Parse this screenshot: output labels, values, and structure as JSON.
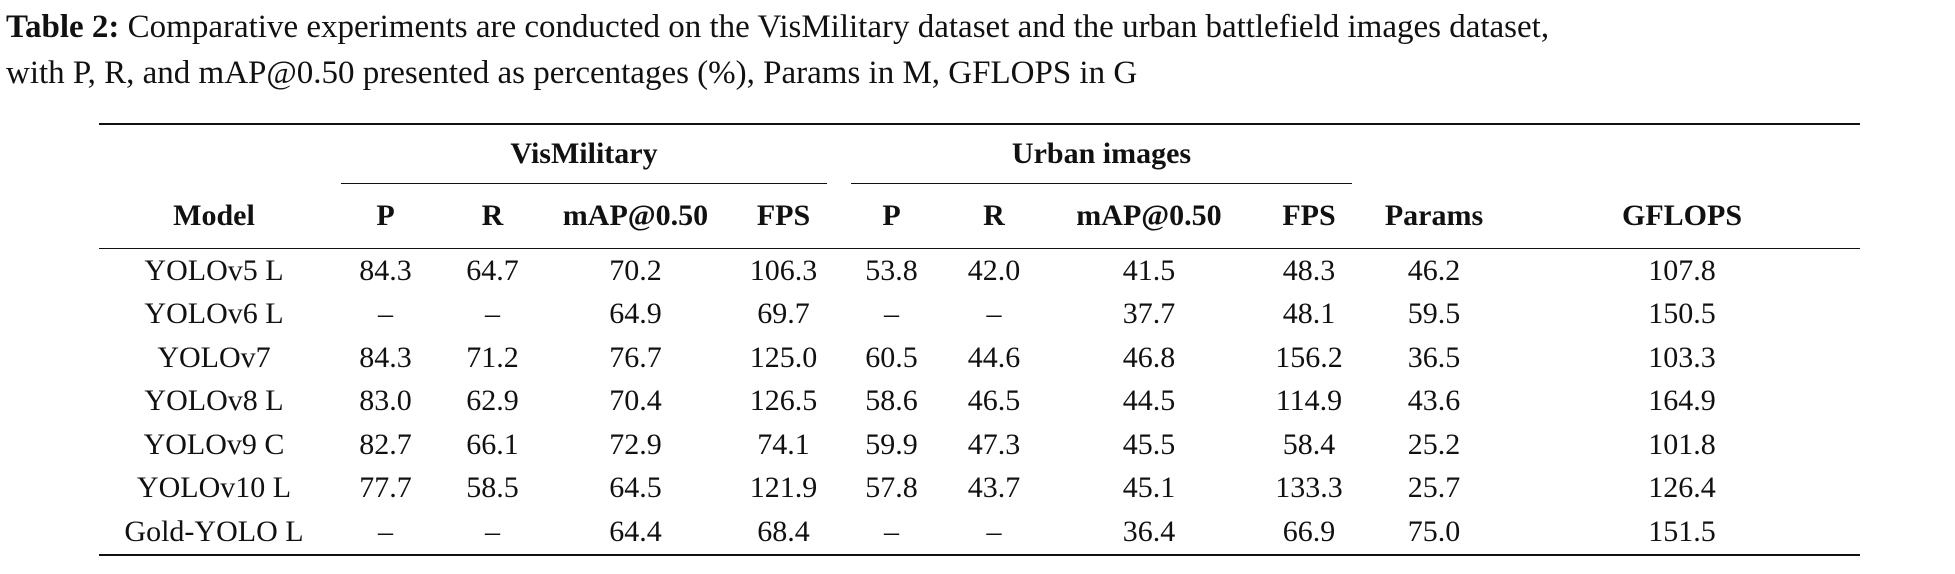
{
  "caption": {
    "label": "Table 2:",
    "line1": " Comparative experiments are conducted on the VisMilitary dataset and the urban battlefield images dataset,",
    "line2": "with P, R, and mAP@0.50 presented as percentages (%), Params in M, GFLOPS in G"
  },
  "table": {
    "groups": {
      "vismilitary": "VisMilitary",
      "urban": "Urban images"
    },
    "headers": [
      "Model",
      "P",
      "R",
      "mAP@0.50",
      "FPS",
      "P",
      "R",
      "mAP@0.50",
      "FPS",
      "Params",
      "GFLOPS"
    ],
    "rows": [
      [
        "YOLOv5 L",
        "84.3",
        "64.7",
        "70.2",
        "106.3",
        "53.8",
        "42.0",
        "41.5",
        "48.3",
        "46.2",
        "107.8"
      ],
      [
        "YOLOv6 L",
        "–",
        "–",
        "64.9",
        "69.7",
        "–",
        "–",
        "37.7",
        "48.1",
        "59.5",
        "150.5"
      ],
      [
        "YOLOv7",
        "84.3",
        "71.2",
        "76.7",
        "125.0",
        "60.5",
        "44.6",
        "46.8",
        "156.2",
        "36.5",
        "103.3"
      ],
      [
        "YOLOv8 L",
        "83.0",
        "62.9",
        "70.4",
        "126.5",
        "58.6",
        "46.5",
        "44.5",
        "114.9",
        "43.6",
        "164.9"
      ],
      [
        "YOLOv9 C",
        "82.7",
        "66.1",
        "72.9",
        "74.1",
        "59.9",
        "47.3",
        "45.5",
        "58.4",
        "25.2",
        "101.8"
      ],
      [
        "YOLOv10 L",
        "77.7",
        "58.5",
        "64.5",
        "121.9",
        "57.8",
        "43.7",
        "45.1",
        "133.3",
        "25.7",
        "126.4"
      ],
      [
        "Gold-YOLO L",
        "–",
        "–",
        "64.4",
        "68.4",
        "–",
        "–",
        "36.4",
        "66.9",
        "75.0",
        "151.5"
      ]
    ]
  }
}
